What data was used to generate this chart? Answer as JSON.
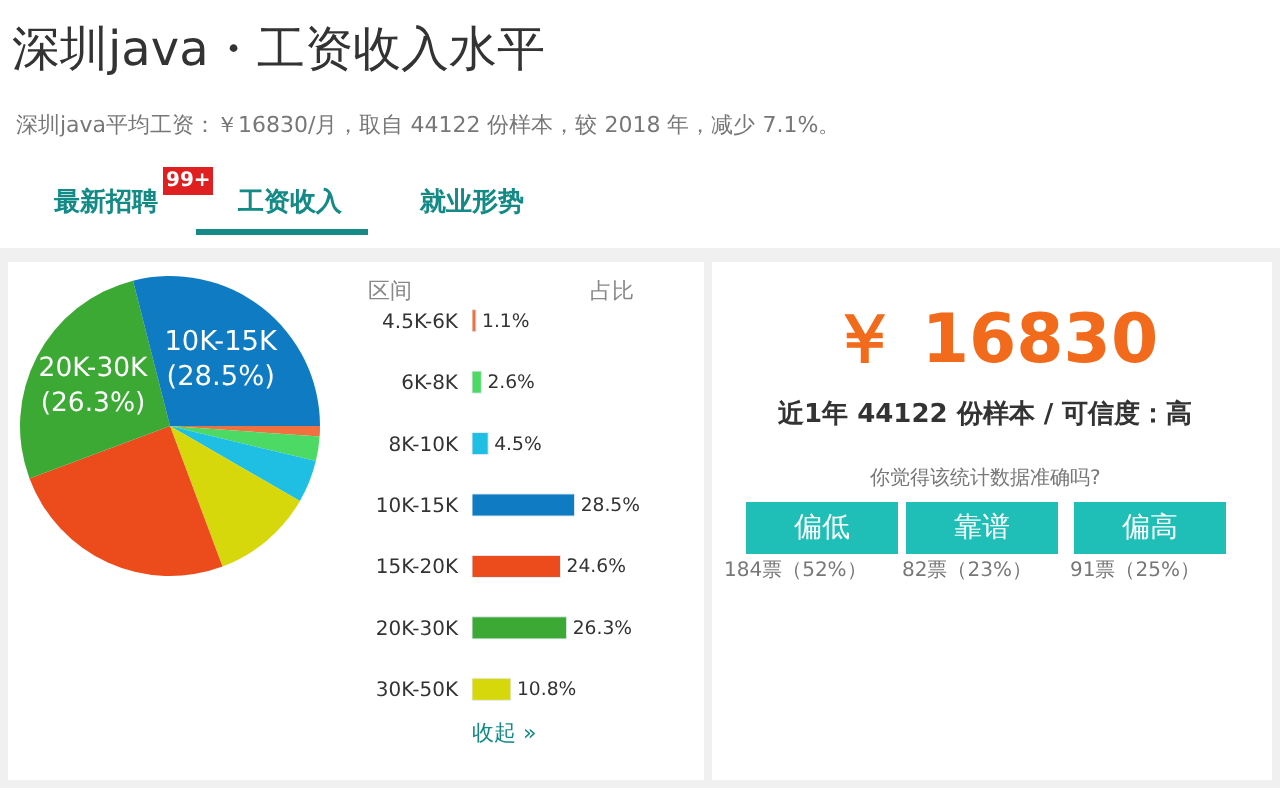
{
  "chart_data": [
    {
      "type": "pie",
      "title": "深圳java・工资收入水平",
      "subtitle": "深圳java平均工资：￥16830/月，取自 44122 份样本，较 2018 年，减少 7.1%。",
      "annotations": [
        "最新招聘",
        "99+",
        "工资收入",
        "就业形势"
      ],
      "categories": [
        null,
        null,
        null,
        null,
        null,
        null,
        null
      ],
      "values": [
        1.1,
        2.6,
        4.5,
        10.8,
        24.6,
        26.3,
        28.5
      ],
      "colors": [
        "#f07040",
        "#4cd964",
        "#1ebfe3",
        "#d6d80c",
        "#ec4c1c",
        "#3ca935",
        "#0f7bc3"
      ],
      "value_labels": [
        null,
        null,
        null,
        null,
        null,
        "20K-30K\n(26.3%)",
        "10K-15K\n(28.5%)"
      ]
    },
    {
      "type": "bar",
      "orientation": "horizontal",
      "ylabel": "区间",
      "annotations": [
        "占比",
        "收起 »"
      ],
      "categories": [
        "4.5K-6K",
        "6K-8K",
        "8K-10K",
        "10K-15K",
        "15K-20K",
        "20K-30K",
        "30K-50K"
      ],
      "values": [
        1.1,
        2.6,
        4.5,
        28.5,
        24.6,
        26.3,
        10.8
      ],
      "colors": [
        "#f07040",
        "#4cd964",
        "#1ebfe3",
        "#0f7bc3",
        "#ec4c1c",
        "#3ca935",
        "#d6d80c"
      ],
      "value_labels": [
        "1.1%",
        "2.6%",
        "4.5%",
        "28.5%",
        "24.6%",
        "26.3%",
        "10.8%"
      ],
      "xlim": [
        0,
        30
      ],
      "tick_labels": "y"
    },
    {
      "type": "other",
      "annotations": [
        "￥ 16830",
        "近1年 44122 份样本 / 可信度：高",
        "你觉得该统计数据准确吗?",
        "偏低",
        "靠谱",
        "偏高",
        "184票（52%）",
        "82票（23%）",
        "91票（25%）"
      ]
    }
  ]
}
